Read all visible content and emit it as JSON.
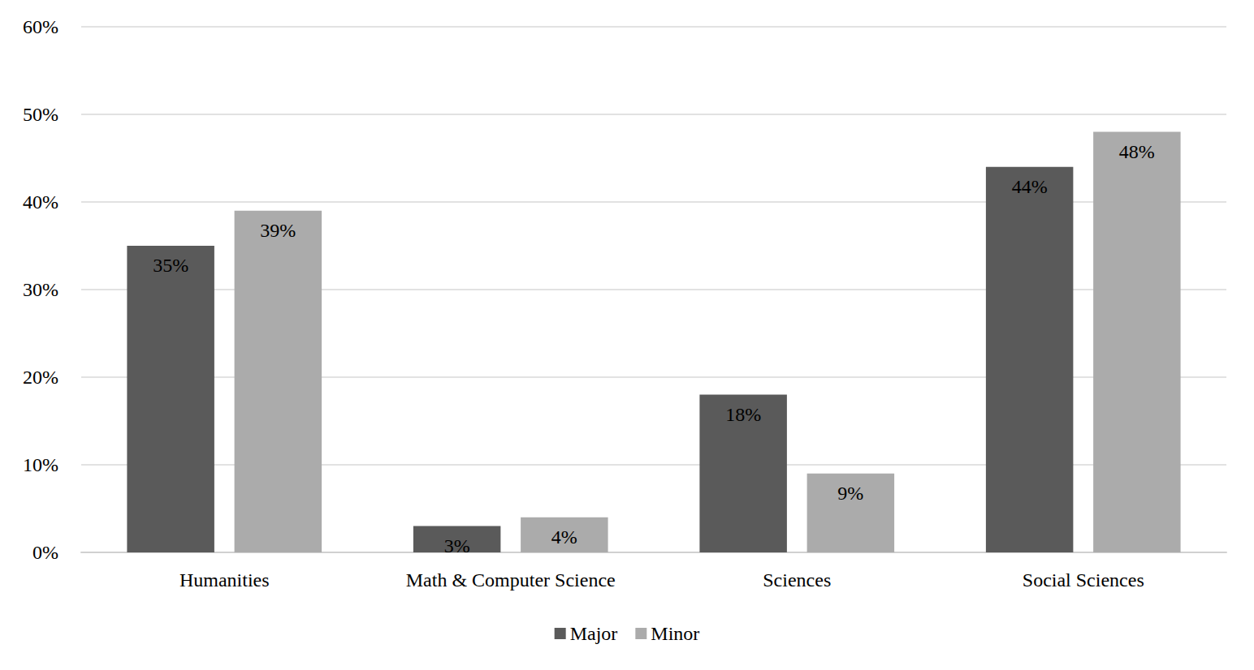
{
  "chart_data": {
    "type": "bar",
    "categories": [
      "Humanities",
      "Math & Computer Science",
      "Sciences",
      "Social Sciences"
    ],
    "series": [
      {
        "name": "Major",
        "color": "#5a5a5a",
        "values": [
          35,
          3,
          18,
          44
        ],
        "value_labels": [
          "35%",
          "3%",
          "18%",
          "44%"
        ]
      },
      {
        "name": "Minor",
        "color": "#ababab",
        "values": [
          39,
          4,
          9,
          48
        ],
        "value_labels": [
          "39%",
          "4%",
          "9%",
          "48%"
        ]
      }
    ],
    "ylim": [
      0,
      60
    ],
    "yticks": [
      {
        "value": 0,
        "label": "0%"
      },
      {
        "value": 10,
        "label": "10%"
      },
      {
        "value": 20,
        "label": "20%"
      },
      {
        "value": 30,
        "label": "30%"
      },
      {
        "value": 40,
        "label": "40%"
      },
      {
        "value": 50,
        "label": "50%"
      },
      {
        "value": 60,
        "label": "60%"
      }
    ],
    "grid": true,
    "legend": "bottom",
    "data_labels": true
  }
}
